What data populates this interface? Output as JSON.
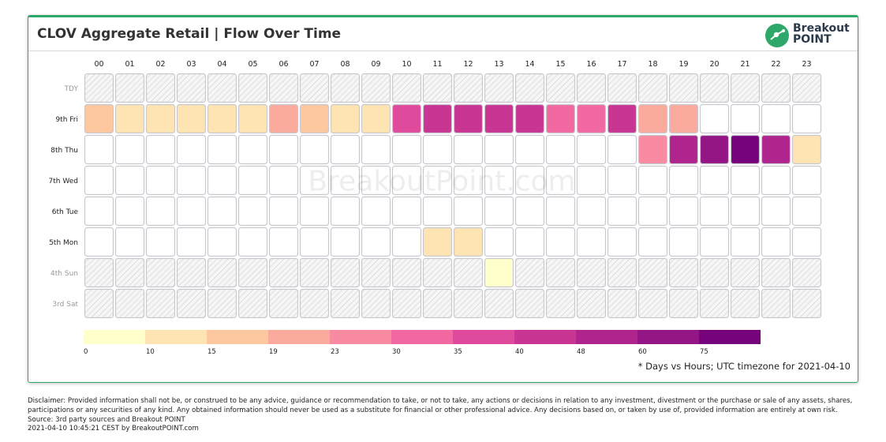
{
  "header": {
    "title": "CLOV Aggregate Retail | Flow Over Time",
    "logo_line1": "Breakout",
    "logo_line2": "POINT"
  },
  "watermark": "BreakoutPoint.com",
  "footnote": "* Days vs Hours; UTC timezone for 2021-04-10",
  "disclaimer": {
    "text": "Disclaimer: Provided information shall not be, or construed to be any advice, guidance or recommendation to take, or not to take, any actions or decisions in relation to any investment, divestment or the purchase or sale of any assets, shares,",
    "text2": "participations or any securities of any kind. Any obtained information should never be used as a substitute for financial or other professional advice. Any decisions based on, or taken by use of, provided information are entirely at own risk.",
    "source": "Source: 3rd party sources and Breakout POINT",
    "timestamp": "2021-04-10 10:45:21 CEST by BreakoutPOINT.com"
  },
  "colors": {
    "accent": "#2ea86a",
    "empty_cell": "#ffffff",
    "cell_border": "#c8c8d0",
    "hatch": "#d4d4d4"
  },
  "chart_data": {
    "type": "heatmap",
    "title": "CLOV Aggregate Retail | Flow Over Time",
    "x_labels": [
      "00",
      "01",
      "02",
      "03",
      "04",
      "05",
      "06",
      "07",
      "08",
      "09",
      "10",
      "11",
      "12",
      "13",
      "14",
      "15",
      "16",
      "17",
      "18",
      "19",
      "20",
      "21",
      "22",
      "23"
    ],
    "y_labels": [
      "TDY",
      "9th Fri",
      "8th Thu",
      "7th Wed",
      "6th Tue",
      "5th Mon",
      "4th Sun",
      "3rd Sat"
    ],
    "inactive_rows": [
      0,
      6,
      7
    ],
    "values": [
      [
        null,
        null,
        null,
        null,
        null,
        null,
        null,
        null,
        null,
        null,
        null,
        null,
        null,
        null,
        null,
        null,
        null,
        null,
        null,
        null,
        null,
        null,
        null,
        null
      ],
      [
        17,
        12,
        12,
        12,
        12,
        12,
        21,
        17,
        12,
        12,
        38,
        44,
        44,
        44,
        44,
        33,
        33,
        44,
        21,
        21,
        null,
        null,
        null,
        null
      ],
      [
        null,
        null,
        null,
        null,
        null,
        null,
        null,
        null,
        null,
        null,
        null,
        null,
        null,
        null,
        null,
        null,
        null,
        null,
        26,
        55,
        65,
        80,
        55,
        12
      ],
      [
        null,
        null,
        null,
        null,
        null,
        null,
        null,
        null,
        null,
        null,
        null,
        null,
        null,
        null,
        null,
        null,
        null,
        null,
        null,
        null,
        null,
        null,
        null,
        null
      ],
      [
        null,
        null,
        null,
        null,
        null,
        null,
        null,
        null,
        null,
        null,
        null,
        null,
        null,
        null,
        null,
        null,
        null,
        null,
        null,
        null,
        null,
        null,
        null,
        null
      ],
      [
        null,
        null,
        null,
        null,
        null,
        null,
        null,
        null,
        null,
        null,
        null,
        12,
        12,
        null,
        null,
        null,
        null,
        null,
        null,
        null,
        null,
        null,
        null,
        null
      ],
      [
        null,
        null,
        null,
        null,
        null,
        null,
        null,
        null,
        null,
        null,
        null,
        null,
        null,
        5,
        null,
        null,
        null,
        null,
        null,
        null,
        null,
        null,
        null,
        null
      ],
      [
        null,
        null,
        null,
        null,
        null,
        null,
        null,
        null,
        null,
        null,
        null,
        null,
        null,
        null,
        null,
        null,
        null,
        null,
        null,
        null,
        null,
        null,
        null,
        null
      ]
    ],
    "colorscale": {
      "breaks": [
        "0",
        "10",
        "15",
        "19",
        "23",
        "30",
        "35",
        "40",
        "48",
        "60",
        "75"
      ],
      "colors": [
        "#ffffcc",
        "#fde4b2",
        "#fdc7a0",
        "#fbab9e",
        "#f88aa2",
        "#f269a2",
        "#e04a9c",
        "#c83592",
        "#af248d",
        "#941586",
        "#76037c"
      ]
    }
  }
}
